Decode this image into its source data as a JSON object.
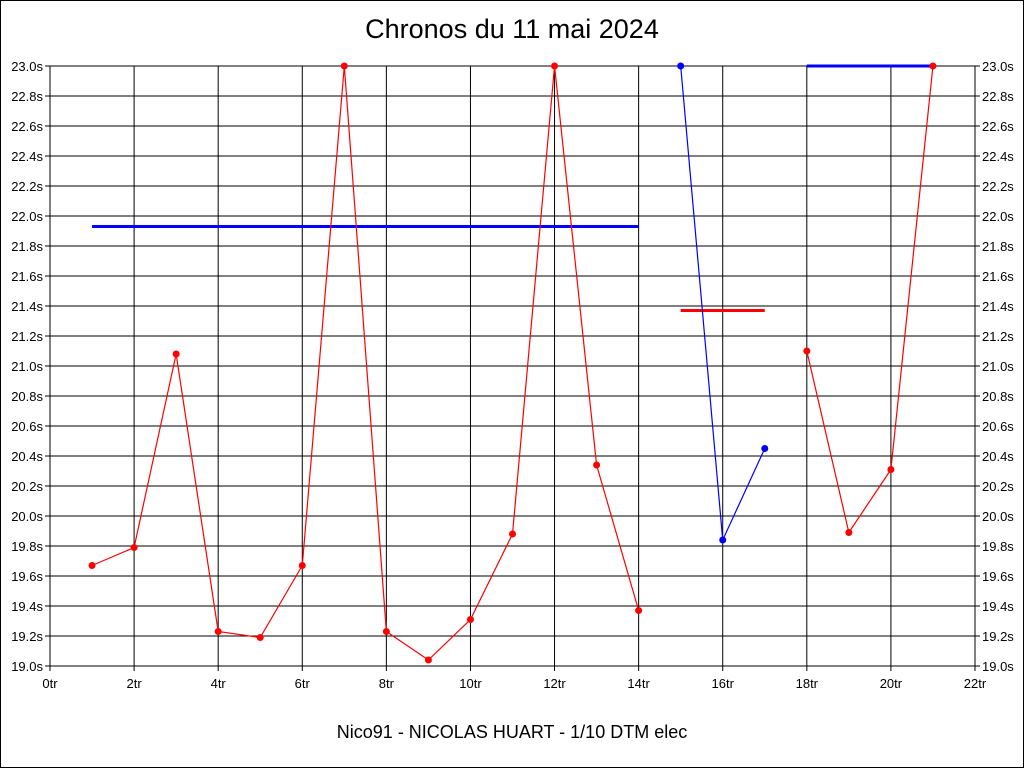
{
  "chart_data": {
    "type": "line",
    "title": "Chronos du 11 mai 2024",
    "footer": "Nico91 - NICOLAS HUART - 1/10 DTM elec",
    "xlabel": "",
    "ylabel": "",
    "xlim": [
      0,
      22
    ],
    "ylim": [
      19.0,
      23.0
    ],
    "grid": true,
    "x_ticks": [
      "0tr",
      "2tr",
      "4tr",
      "6tr",
      "8tr",
      "10tr",
      "12tr",
      "14tr",
      "16tr",
      "18tr",
      "20tr",
      "22tr"
    ],
    "y_ticks": [
      "23.0s",
      "22.8s",
      "22.6s",
      "22.4s",
      "22.2s",
      "22.0s",
      "21.8s",
      "21.6s",
      "21.4s",
      "21.2s",
      "21.0s",
      "20.8s",
      "20.6s",
      "20.4s",
      "20.2s",
      "20.0s",
      "19.8s",
      "19.6s",
      "19.4s",
      "19.2s",
      "19.0s"
    ],
    "series": [
      {
        "color": "#ff0000",
        "x": [
          1,
          2,
          3,
          4,
          5,
          6,
          7,
          8,
          9,
          10,
          11,
          12,
          13,
          14
        ],
        "y": [
          19.67,
          19.79,
          21.08,
          19.23,
          19.19,
          19.67,
          23.0,
          19.23,
          19.04,
          19.31,
          19.88,
          23.0,
          20.34,
          19.37
        ]
      },
      {
        "color": "#0000ff",
        "x": [
          15,
          16,
          17
        ],
        "y": [
          23.0,
          19.84,
          20.45
        ]
      },
      {
        "color": "#ff0000",
        "x": [
          18,
          19,
          20,
          21
        ],
        "y": [
          21.1,
          19.89,
          20.31,
          23.0
        ]
      }
    ],
    "reference_lines": [
      {
        "color": "#0000ff",
        "x": [
          1,
          14
        ],
        "y": 21.93
      },
      {
        "color": "#ff0000",
        "x": [
          15,
          17
        ],
        "y": 21.37
      },
      {
        "color": "#0000ff",
        "x": [
          18,
          21
        ],
        "y": 23.0
      }
    ]
  }
}
